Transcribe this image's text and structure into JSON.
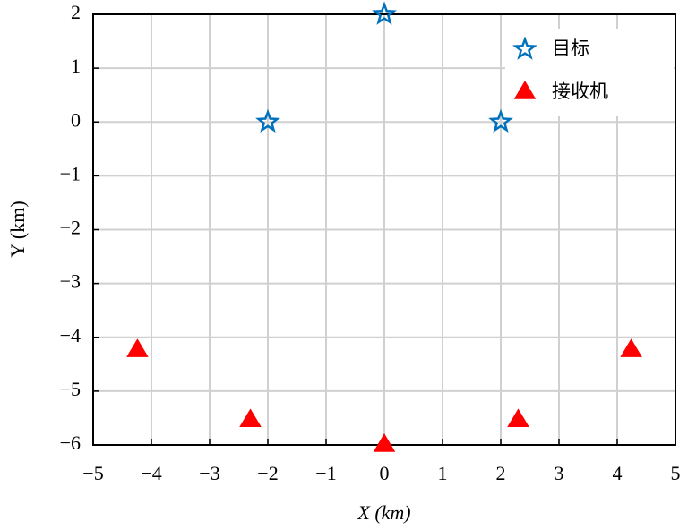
{
  "chart_data": {
    "type": "scatter",
    "xlabel": "X (km)",
    "ylabel": "Y (km)",
    "xlim": [
      -5,
      5
    ],
    "xticks": [
      {
        "value": -5,
        "label": "−5"
      },
      {
        "value": -4,
        "label": "−4"
      },
      {
        "value": -3,
        "label": "−3"
      },
      {
        "value": -2,
        "label": "−2"
      },
      {
        "value": -1,
        "label": "−1"
      },
      0,
      1,
      2,
      3,
      4,
      5
    ],
    "ylim": [
      -6,
      2
    ],
    "yticks": [
      {
        "value": -6,
        "label": "−6"
      },
      {
        "value": -5,
        "label": "−5"
      },
      {
        "value": -4,
        "label": "−4"
      },
      {
        "value": -3,
        "label": "−3"
      },
      {
        "value": -2,
        "label": "−2"
      },
      {
        "value": -1,
        "label": "−1"
      },
      0,
      1,
      2
    ],
    "grid": true,
    "legend": "upper right",
    "series": [
      {
        "name": "目标",
        "color": "#0072bd",
        "marker": "star",
        "x": [
          0,
          -2,
          2
        ],
        "values": [
          2,
          0,
          0
        ]
      },
      {
        "name": "接收机",
        "color": "#ff0000",
        "marker": "triangle",
        "x": [
          -4.24,
          -2.3,
          0,
          2.3,
          4.24
        ],
        "values": [
          -4.24,
          -5.54,
          -6,
          -5.54,
          -4.24
        ]
      }
    ]
  }
}
